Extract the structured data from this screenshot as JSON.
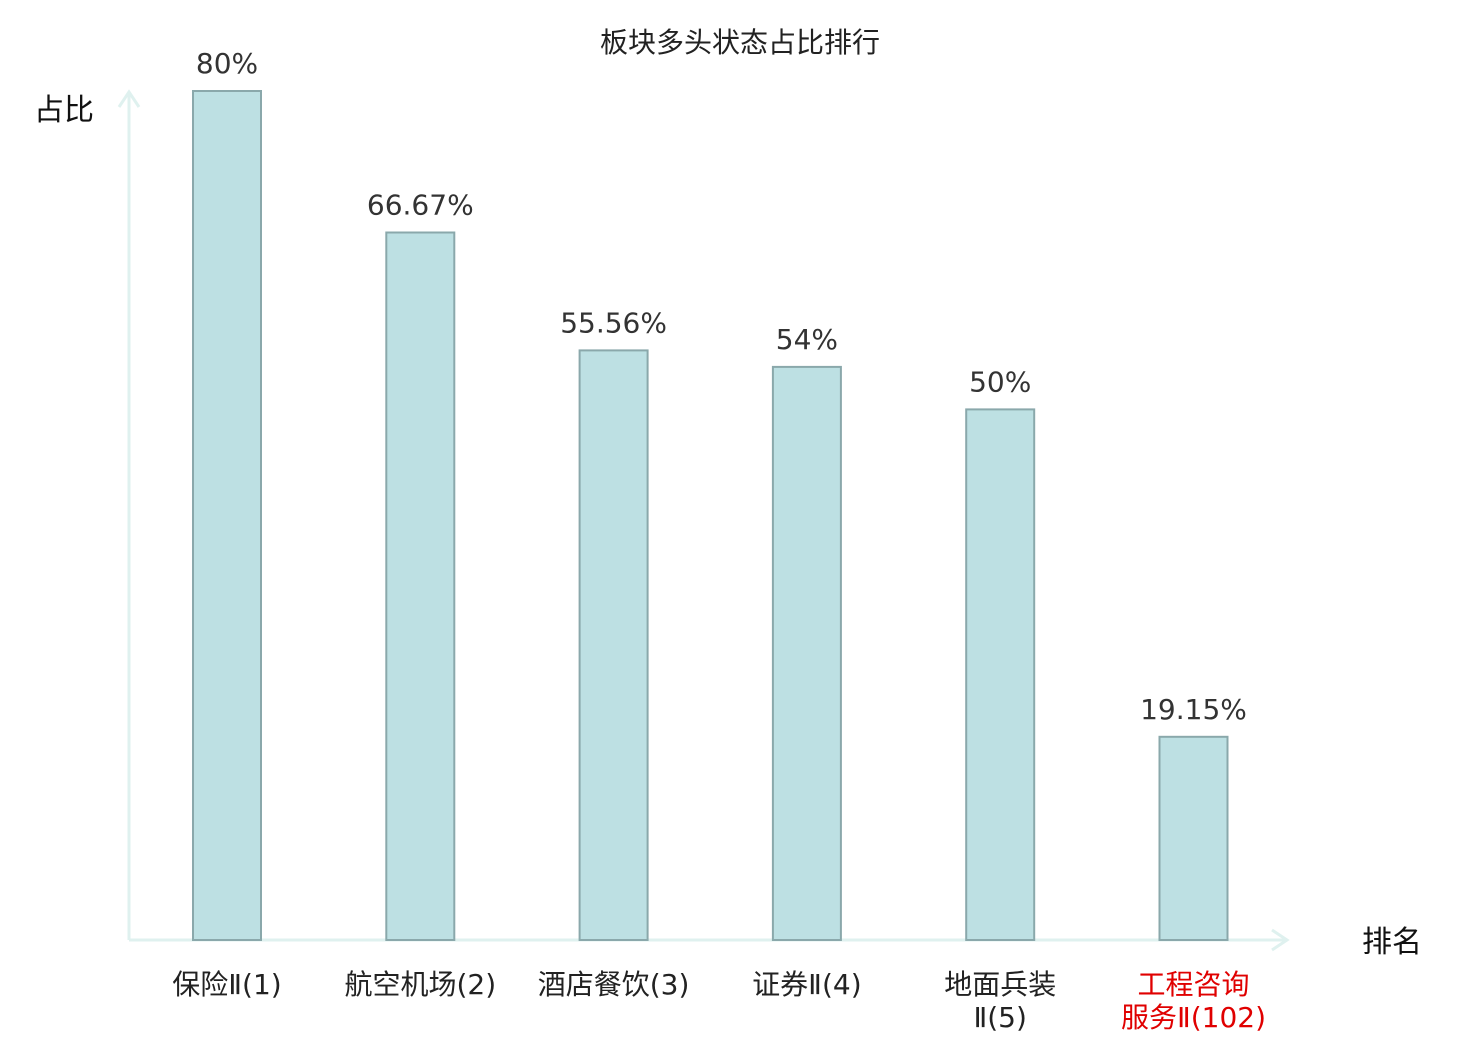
{
  "chart_data": {
    "type": "bar",
    "title": "板块多头状态占比排行",
    "ylabel": "占比",
    "xlabel": "排名",
    "ylim": [
      0,
      80
    ],
    "categories": [
      "保险Ⅱ(1)",
      "航空机场(2)",
      "酒店餐饮(3)",
      "证券Ⅱ(4)",
      "地面兵装Ⅱ(5)",
      "工程咨询服务Ⅱ(102)"
    ],
    "category_lines": [
      [
        "保险Ⅱ(1)"
      ],
      [
        "航空机场(2)"
      ],
      [
        "酒店餐饮(3)"
      ],
      [
        "证券Ⅱ(4)"
      ],
      [
        "地面兵装",
        "Ⅱ(5)"
      ],
      [
        "工程咨询",
        "服务Ⅱ(102)"
      ]
    ],
    "values": [
      80,
      66.67,
      55.56,
      54,
      50,
      19.15
    ],
    "value_labels": [
      "80%",
      "66.67%",
      "55.56%",
      "54%",
      "50%",
      "19.15%"
    ],
    "highlight_index": 5,
    "highlight_color": "#e00000",
    "bar_color": "#bde0e3",
    "bar_edge_color": "#8aa8ab",
    "axis_color": "#dff1ef",
    "grid": false
  }
}
